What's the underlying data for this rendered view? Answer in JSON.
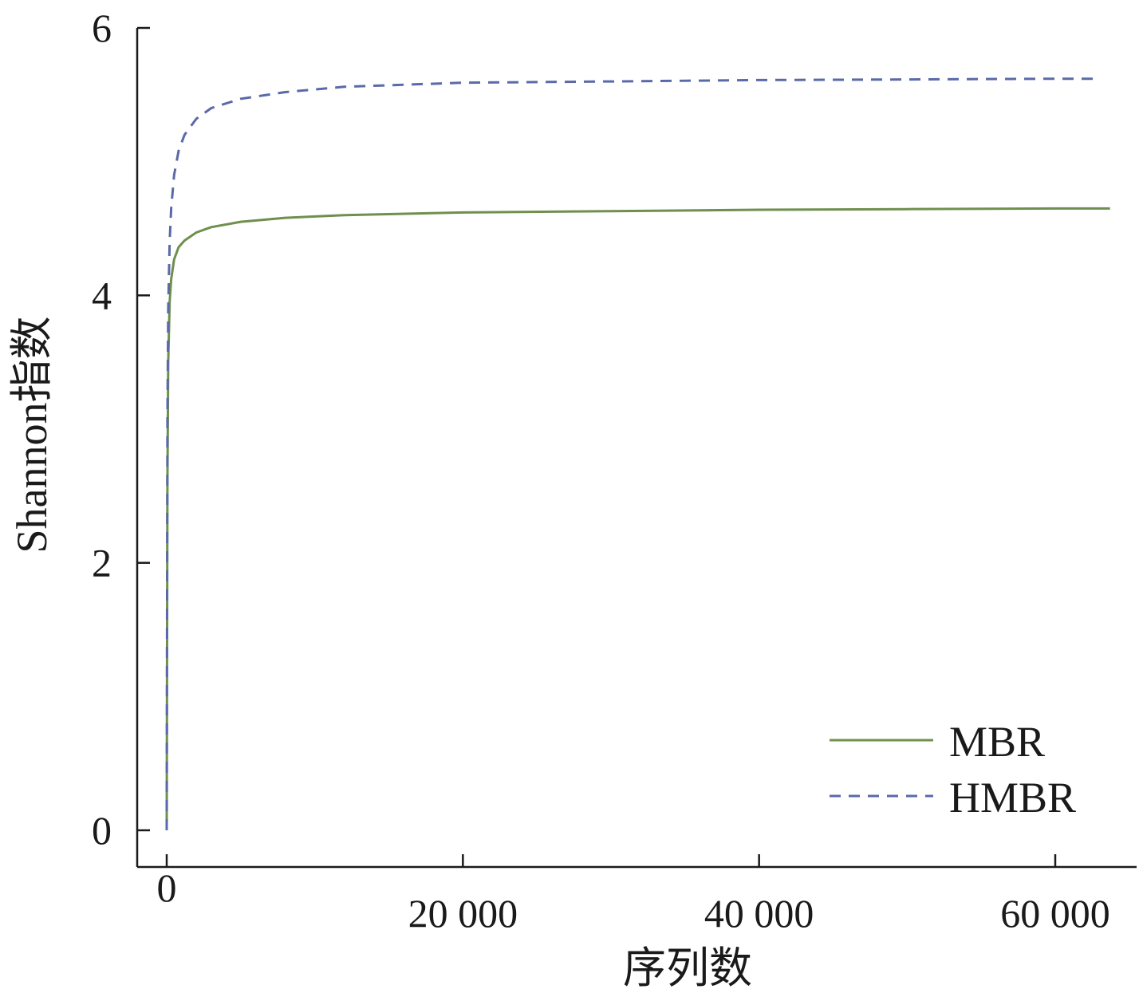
{
  "chart_data": {
    "type": "line",
    "xlabel": "序列数",
    "ylabel": "Shannon指数",
    "xlim": [
      -1000,
      66000
    ],
    "ylim": [
      -0.3,
      6
    ],
    "x_ticks": [
      0,
      20000,
      40000,
      60000
    ],
    "x_tick_labels": [
      "0",
      "20 000",
      "40 000",
      "60 000"
    ],
    "y_ticks": [
      0,
      2,
      4,
      6
    ],
    "y_tick_labels": [
      "0",
      "2",
      "4",
      "6"
    ],
    "grid": false,
    "legend_position": "bottom-right",
    "series": [
      {
        "name": "MBR",
        "color": "#6f8f4e",
        "dash": "solid",
        "x": [
          0,
          20,
          50,
          100,
          200,
          300,
          500,
          800,
          1200,
          2000,
          3000,
          5000,
          8000,
          12000,
          20000,
          30000,
          40000,
          50000,
          60000,
          63700
        ],
        "y": [
          0,
          1.2,
          2.6,
          3.5,
          3.95,
          4.12,
          4.27,
          4.36,
          4.41,
          4.47,
          4.51,
          4.55,
          4.58,
          4.6,
          4.62,
          4.63,
          4.64,
          4.645,
          4.65,
          4.65
        ]
      },
      {
        "name": "HMBR",
        "color": "#5a6aa8",
        "dash": "dashed",
        "x": [
          0,
          20,
          50,
          100,
          200,
          300,
          500,
          800,
          1200,
          2000,
          3000,
          5000,
          8000,
          12000,
          20000,
          30000,
          40000,
          50000,
          60000,
          63000
        ],
        "y": [
          0,
          1.5,
          3.1,
          3.9,
          4.4,
          4.65,
          4.9,
          5.08,
          5.2,
          5.32,
          5.4,
          5.47,
          5.52,
          5.56,
          5.59,
          5.6,
          5.61,
          5.615,
          5.62,
          5.62
        ]
      }
    ]
  }
}
